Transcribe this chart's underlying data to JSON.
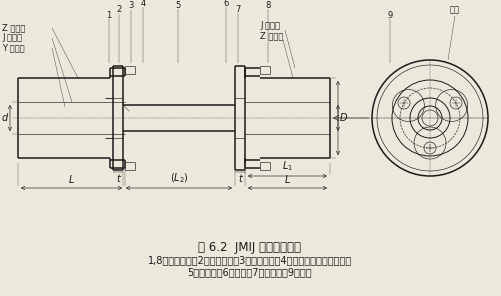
{
  "title": "图 6.2  JMIJ 型膜片联轴器",
  "caption_line1": "1,8－半联轴器；2－扣紧螺母；3－六角螺母；4－六角头铰制孔用螺栓；",
  "caption_line2": "5－中间轴；6－隔圈；7－支承圈；9－膜片",
  "background_color": "#ede8dc",
  "label_z_left": "Z 型轴孔",
  "label_j_left": "J 型轴孔",
  "label_y_left": "Y 型轴孔",
  "label_j_right": "J 型轴孔",
  "label_z_right": "Z 型轴孔",
  "label_biaozhi": "标志",
  "title_fontsize": 8.5,
  "caption_fontsize": 7.0
}
